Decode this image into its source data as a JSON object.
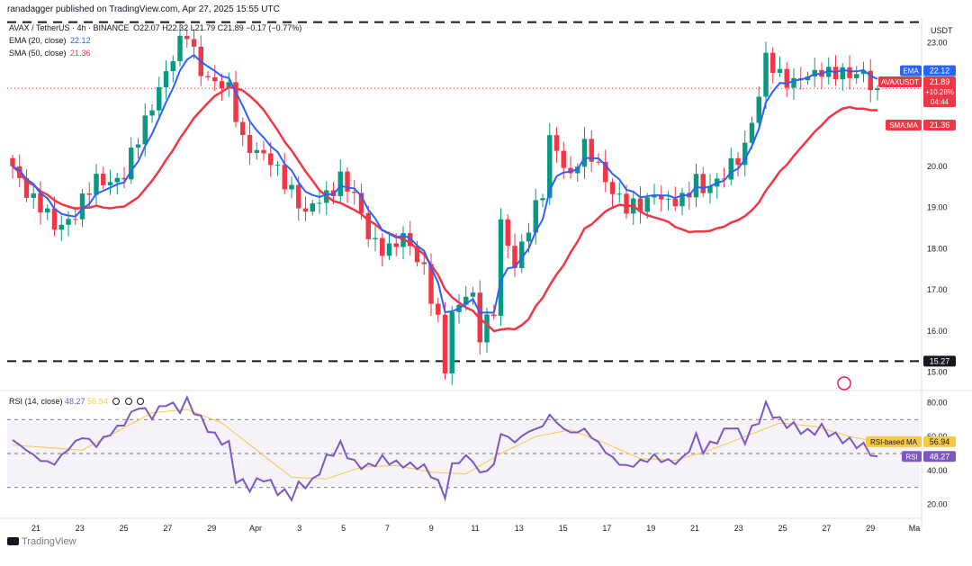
{
  "header": {
    "publisher": "ranadagger published on TradingView.com, Apr 27, 2025 15:55 UTC",
    "symbol": "AVAX / TetherUS · 4h · BINANCE",
    "ohlc": "O22.07 H22.32 L21.79 C21.89 −0.17 (−0.77%)",
    "ema_label": "EMA (20, close)",
    "ema_value": "22.12",
    "sma_label": "SMA (50, close)",
    "sma_value": "21.36",
    "rsi_label": "RSI (14, close)",
    "rsi_value": "48.27",
    "rsi_ma_value": "56.94"
  },
  "axis": {
    "currency": "USDT"
  },
  "watermark": "TradingView",
  "colors": {
    "up": "#089981",
    "down": "#f23645",
    "ema": "#2962ff",
    "sma": "#f23645",
    "rsi": "#7e57c2",
    "rsi_ma": "#f7c948",
    "level": "#131722"
  },
  "chart_data": [
    {
      "type": "candlestick",
      "interval": "4h",
      "ylim": [
        14.6,
        23.6
      ],
      "yticks": [
        15,
        16,
        17,
        18,
        19,
        20,
        21,
        22,
        23
      ],
      "ytick_labels": [
        "15.00",
        "16.00",
        "17.00",
        "18.00",
        "19.00",
        "20.00",
        "21.00",
        "22.00",
        "23.00"
      ],
      "x_tick_labels": [
        "21",
        "23",
        "25",
        "27",
        "29",
        "Apr",
        "3",
        "5",
        "7",
        "9",
        "11",
        "13",
        "15",
        "17",
        "19",
        "21",
        "23",
        "25",
        "27",
        "29",
        "Ma"
      ],
      "price_path": [
        [
          0,
          20.0
        ],
        [
          3,
          19.2
        ],
        [
          6,
          18.5
        ],
        [
          9,
          18.9
        ],
        [
          12,
          19.6
        ],
        [
          16,
          19.8
        ],
        [
          18,
          20.6
        ],
        [
          21,
          22.0
        ],
        [
          24,
          22.9
        ],
        [
          25,
          23.2
        ],
        [
          27,
          22.4
        ],
        [
          29,
          22.0
        ],
        [
          31,
          21.8
        ],
        [
          33,
          20.7
        ],
        [
          36,
          20.2
        ],
        [
          40,
          19.5
        ],
        [
          42,
          18.8
        ],
        [
          45,
          19.3
        ],
        [
          47,
          19.8
        ],
        [
          49,
          19.2
        ],
        [
          51,
          18.3
        ],
        [
          54,
          18.0
        ],
        [
          56,
          18.2
        ],
        [
          59,
          17.6
        ],
        [
          61,
          16.2
        ],
        [
          62,
          15.0
        ],
        [
          63,
          16.3
        ],
        [
          65,
          17.0
        ],
        [
          66,
          16.9
        ],
        [
          67,
          15.9
        ],
        [
          69,
          16.4
        ],
        [
          70,
          18.6
        ],
        [
          72,
          17.7
        ],
        [
          74,
          18.5
        ],
        [
          76,
          19.3
        ],
        [
          77,
          20.7
        ],
        [
          78,
          20.5
        ],
        [
          80,
          19.7
        ],
        [
          82,
          20.4
        ],
        [
          84,
          20.1
        ],
        [
          86,
          19.4
        ],
        [
          88,
          18.9
        ],
        [
          90,
          19.1
        ],
        [
          92,
          19.4
        ],
        [
          94,
          19.0
        ],
        [
          96,
          19.2
        ],
        [
          98,
          19.8
        ],
        [
          99,
          19.4
        ],
        [
          101,
          19.5
        ],
        [
          103,
          20.1
        ],
        [
          105,
          20.5
        ],
        [
          107,
          21.6
        ],
        [
          108,
          22.6
        ],
        [
          110,
          22.3
        ],
        [
          112,
          22.0
        ],
        [
          114,
          22.1
        ],
        [
          116,
          22.4
        ],
        [
          118,
          22.3
        ],
        [
          120,
          22.1
        ],
        [
          122,
          22.3
        ],
        [
          124,
          21.89
        ]
      ],
      "price_series": [
        {
          "name": "EMA",
          "value": 22.12,
          "type": "ema",
          "period": 20
        },
        {
          "name": "SMA:MA",
          "value": 21.36,
          "type": "sma",
          "period": 50
        }
      ],
      "horizontal_levels": [
        23.5,
        15.27
      ],
      "price_labels": [
        {
          "text": "EMA",
          "value": "22.12"
        },
        {
          "text": "AVAXUSDT",
          "value": "21.89",
          "extra": [
            "+10.28%",
            "04:44"
          ]
        },
        {
          "text": "SMA:MA",
          "value": "21.36"
        },
        {
          "text": "",
          "value": "15.27"
        }
      ],
      "last_price": 21.89
    },
    {
      "type": "line",
      "title": "RSI (14, close)",
      "ylim": [
        15,
        85
      ],
      "yticks": [
        20,
        40,
        60,
        80
      ],
      "ytick_labels": [
        "20.00",
        "40.00",
        "60.00",
        "80.00"
      ],
      "band": [
        30,
        70
      ],
      "series": [
        {
          "name": "RSI",
          "value": 48.27
        },
        {
          "name": "RSI-based MA",
          "value": 56.94
        }
      ],
      "rsi_path": [
        [
          0,
          58
        ],
        [
          2,
          52
        ],
        [
          4,
          46
        ],
        [
          6,
          44
        ],
        [
          8,
          53
        ],
        [
          10,
          60
        ],
        [
          12,
          55
        ],
        [
          14,
          62
        ],
        [
          16,
          68
        ],
        [
          18,
          78
        ],
        [
          20,
          72
        ],
        [
          22,
          80
        ],
        [
          24,
          76
        ],
        [
          25,
          81
        ],
        [
          27,
          70
        ],
        [
          29,
          60
        ],
        [
          31,
          55
        ],
        [
          32,
          35
        ],
        [
          34,
          30
        ],
        [
          36,
          36
        ],
        [
          38,
          28
        ],
        [
          40,
          25
        ],
        [
          41,
          31
        ],
        [
          43,
          33
        ],
        [
          45,
          47
        ],
        [
          47,
          55
        ],
        [
          49,
          44
        ],
        [
          51,
          42
        ],
        [
          53,
          47
        ],
        [
          55,
          44
        ],
        [
          57,
          43
        ],
        [
          59,
          42
        ],
        [
          61,
          33
        ],
        [
          62,
          25
        ],
        [
          63,
          43
        ],
        [
          65,
          48
        ],
        [
          66,
          46
        ],
        [
          67,
          38
        ],
        [
          69,
          43
        ],
        [
          70,
          62
        ],
        [
          72,
          57
        ],
        [
          74,
          63
        ],
        [
          76,
          66
        ],
        [
          77,
          73
        ],
        [
          78,
          68
        ],
        [
          80,
          62
        ],
        [
          82,
          64
        ],
        [
          84,
          56
        ],
        [
          86,
          47
        ],
        [
          88,
          42
        ],
        [
          90,
          45
        ],
        [
          92,
          48
        ],
        [
          94,
          45
        ],
        [
          96,
          46
        ],
        [
          98,
          60
        ],
        [
          99,
          52
        ],
        [
          101,
          58
        ],
        [
          103,
          67
        ],
        [
          105,
          58
        ],
        [
          107,
          70
        ],
        [
          108,
          78
        ],
        [
          110,
          69
        ],
        [
          112,
          66
        ],
        [
          114,
          62
        ],
        [
          116,
          65
        ],
        [
          118,
          60
        ],
        [
          120,
          57
        ],
        [
          122,
          54
        ],
        [
          124,
          48.27
        ]
      ],
      "rsi_ma_path": [
        [
          0,
          55
        ],
        [
          10,
          52
        ],
        [
          20,
          74
        ],
        [
          25,
          76
        ],
        [
          30,
          68
        ],
        [
          35,
          52
        ],
        [
          40,
          36
        ],
        [
          45,
          35
        ],
        [
          50,
          42
        ],
        [
          55,
          43
        ],
        [
          60,
          39
        ],
        [
          65,
          38
        ],
        [
          70,
          50
        ],
        [
          75,
          60
        ],
        [
          80,
          64
        ],
        [
          85,
          56
        ],
        [
          90,
          47
        ],
        [
          95,
          46
        ],
        [
          100,
          52
        ],
        [
          105,
          60
        ],
        [
          110,
          68
        ],
        [
          115,
          66
        ],
        [
          120,
          60
        ],
        [
          124,
          56.94
        ]
      ]
    }
  ]
}
